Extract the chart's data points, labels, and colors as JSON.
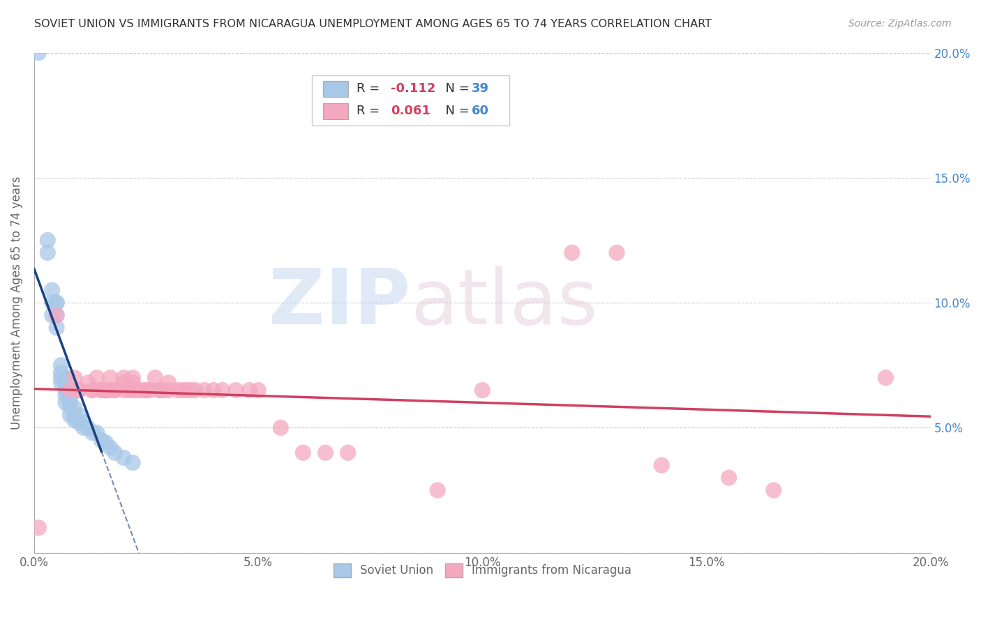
{
  "title": "SOVIET UNION VS IMMIGRANTS FROM NICARAGUA UNEMPLOYMENT AMONG AGES 65 TO 74 YEARS CORRELATION CHART",
  "source": "Source: ZipAtlas.com",
  "ylabel": "Unemployment Among Ages 65 to 74 years",
  "xlim": [
    0.0,
    0.2
  ],
  "ylim": [
    0.0,
    0.2
  ],
  "xticks": [
    0.0,
    0.05,
    0.1,
    0.15,
    0.2
  ],
  "yticks": [
    0.0,
    0.05,
    0.1,
    0.15,
    0.2
  ],
  "xticklabels": [
    "0.0%",
    "5.0%",
    "10.0%",
    "15.0%",
    "20.0%"
  ],
  "yticklabels_right": [
    "",
    "5.0%",
    "10.0%",
    "15.0%",
    "20.0%"
  ],
  "legend_r1": "-0.112",
  "legend_n1": "39",
  "legend_r2": "0.061",
  "legend_n2": "60",
  "blue_color": "#a8c8e8",
  "pink_color": "#f4a8c0",
  "blue_line_color": "#1a4080",
  "pink_line_color": "#d04060",
  "tick_color": "#4488cc",
  "text_dark": "#333333",
  "text_mid": "#666666",
  "grid_color": "#cccccc",
  "soviet_x": [
    0.001,
    0.003,
    0.003,
    0.004,
    0.004,
    0.004,
    0.005,
    0.005,
    0.005,
    0.005,
    0.006,
    0.006,
    0.006,
    0.006,
    0.007,
    0.007,
    0.007,
    0.007,
    0.007,
    0.008,
    0.008,
    0.008,
    0.008,
    0.009,
    0.009,
    0.009,
    0.01,
    0.01,
    0.011,
    0.011,
    0.012,
    0.013,
    0.014,
    0.015,
    0.016,
    0.017,
    0.018,
    0.02,
    0.022
  ],
  "soviet_y": [
    0.2,
    0.125,
    0.12,
    0.105,
    0.1,
    0.095,
    0.1,
    0.1,
    0.095,
    0.09,
    0.075,
    0.072,
    0.07,
    0.068,
    0.07,
    0.068,
    0.065,
    0.063,
    0.06,
    0.062,
    0.06,
    0.058,
    0.055,
    0.058,
    0.055,
    0.053,
    0.055,
    0.052,
    0.052,
    0.05,
    0.05,
    0.048,
    0.048,
    0.045,
    0.044,
    0.042,
    0.04,
    0.038,
    0.036
  ],
  "nica_x": [
    0.001,
    0.005,
    0.008,
    0.009,
    0.01,
    0.01,
    0.012,
    0.013,
    0.013,
    0.014,
    0.015,
    0.015,
    0.016,
    0.016,
    0.016,
    0.017,
    0.017,
    0.018,
    0.018,
    0.02,
    0.02,
    0.02,
    0.021,
    0.022,
    0.022,
    0.022,
    0.023,
    0.024,
    0.025,
    0.025,
    0.026,
    0.027,
    0.028,
    0.028,
    0.029,
    0.03,
    0.03,
    0.032,
    0.033,
    0.034,
    0.035,
    0.036,
    0.038,
    0.04,
    0.042,
    0.045,
    0.048,
    0.05,
    0.055,
    0.06,
    0.065,
    0.07,
    0.09,
    0.1,
    0.12,
    0.13,
    0.14,
    0.155,
    0.165,
    0.19
  ],
  "nica_y": [
    0.01,
    0.095,
    0.065,
    0.07,
    0.065,
    0.065,
    0.068,
    0.065,
    0.065,
    0.07,
    0.065,
    0.065,
    0.065,
    0.065,
    0.065,
    0.065,
    0.07,
    0.065,
    0.065,
    0.068,
    0.07,
    0.065,
    0.065,
    0.065,
    0.068,
    0.07,
    0.065,
    0.065,
    0.065,
    0.065,
    0.065,
    0.07,
    0.065,
    0.065,
    0.065,
    0.068,
    0.065,
    0.065,
    0.065,
    0.065,
    0.065,
    0.065,
    0.065,
    0.065,
    0.065,
    0.065,
    0.065,
    0.065,
    0.05,
    0.04,
    0.04,
    0.04,
    0.025,
    0.065,
    0.12,
    0.12,
    0.035,
    0.03,
    0.025,
    0.07
  ]
}
